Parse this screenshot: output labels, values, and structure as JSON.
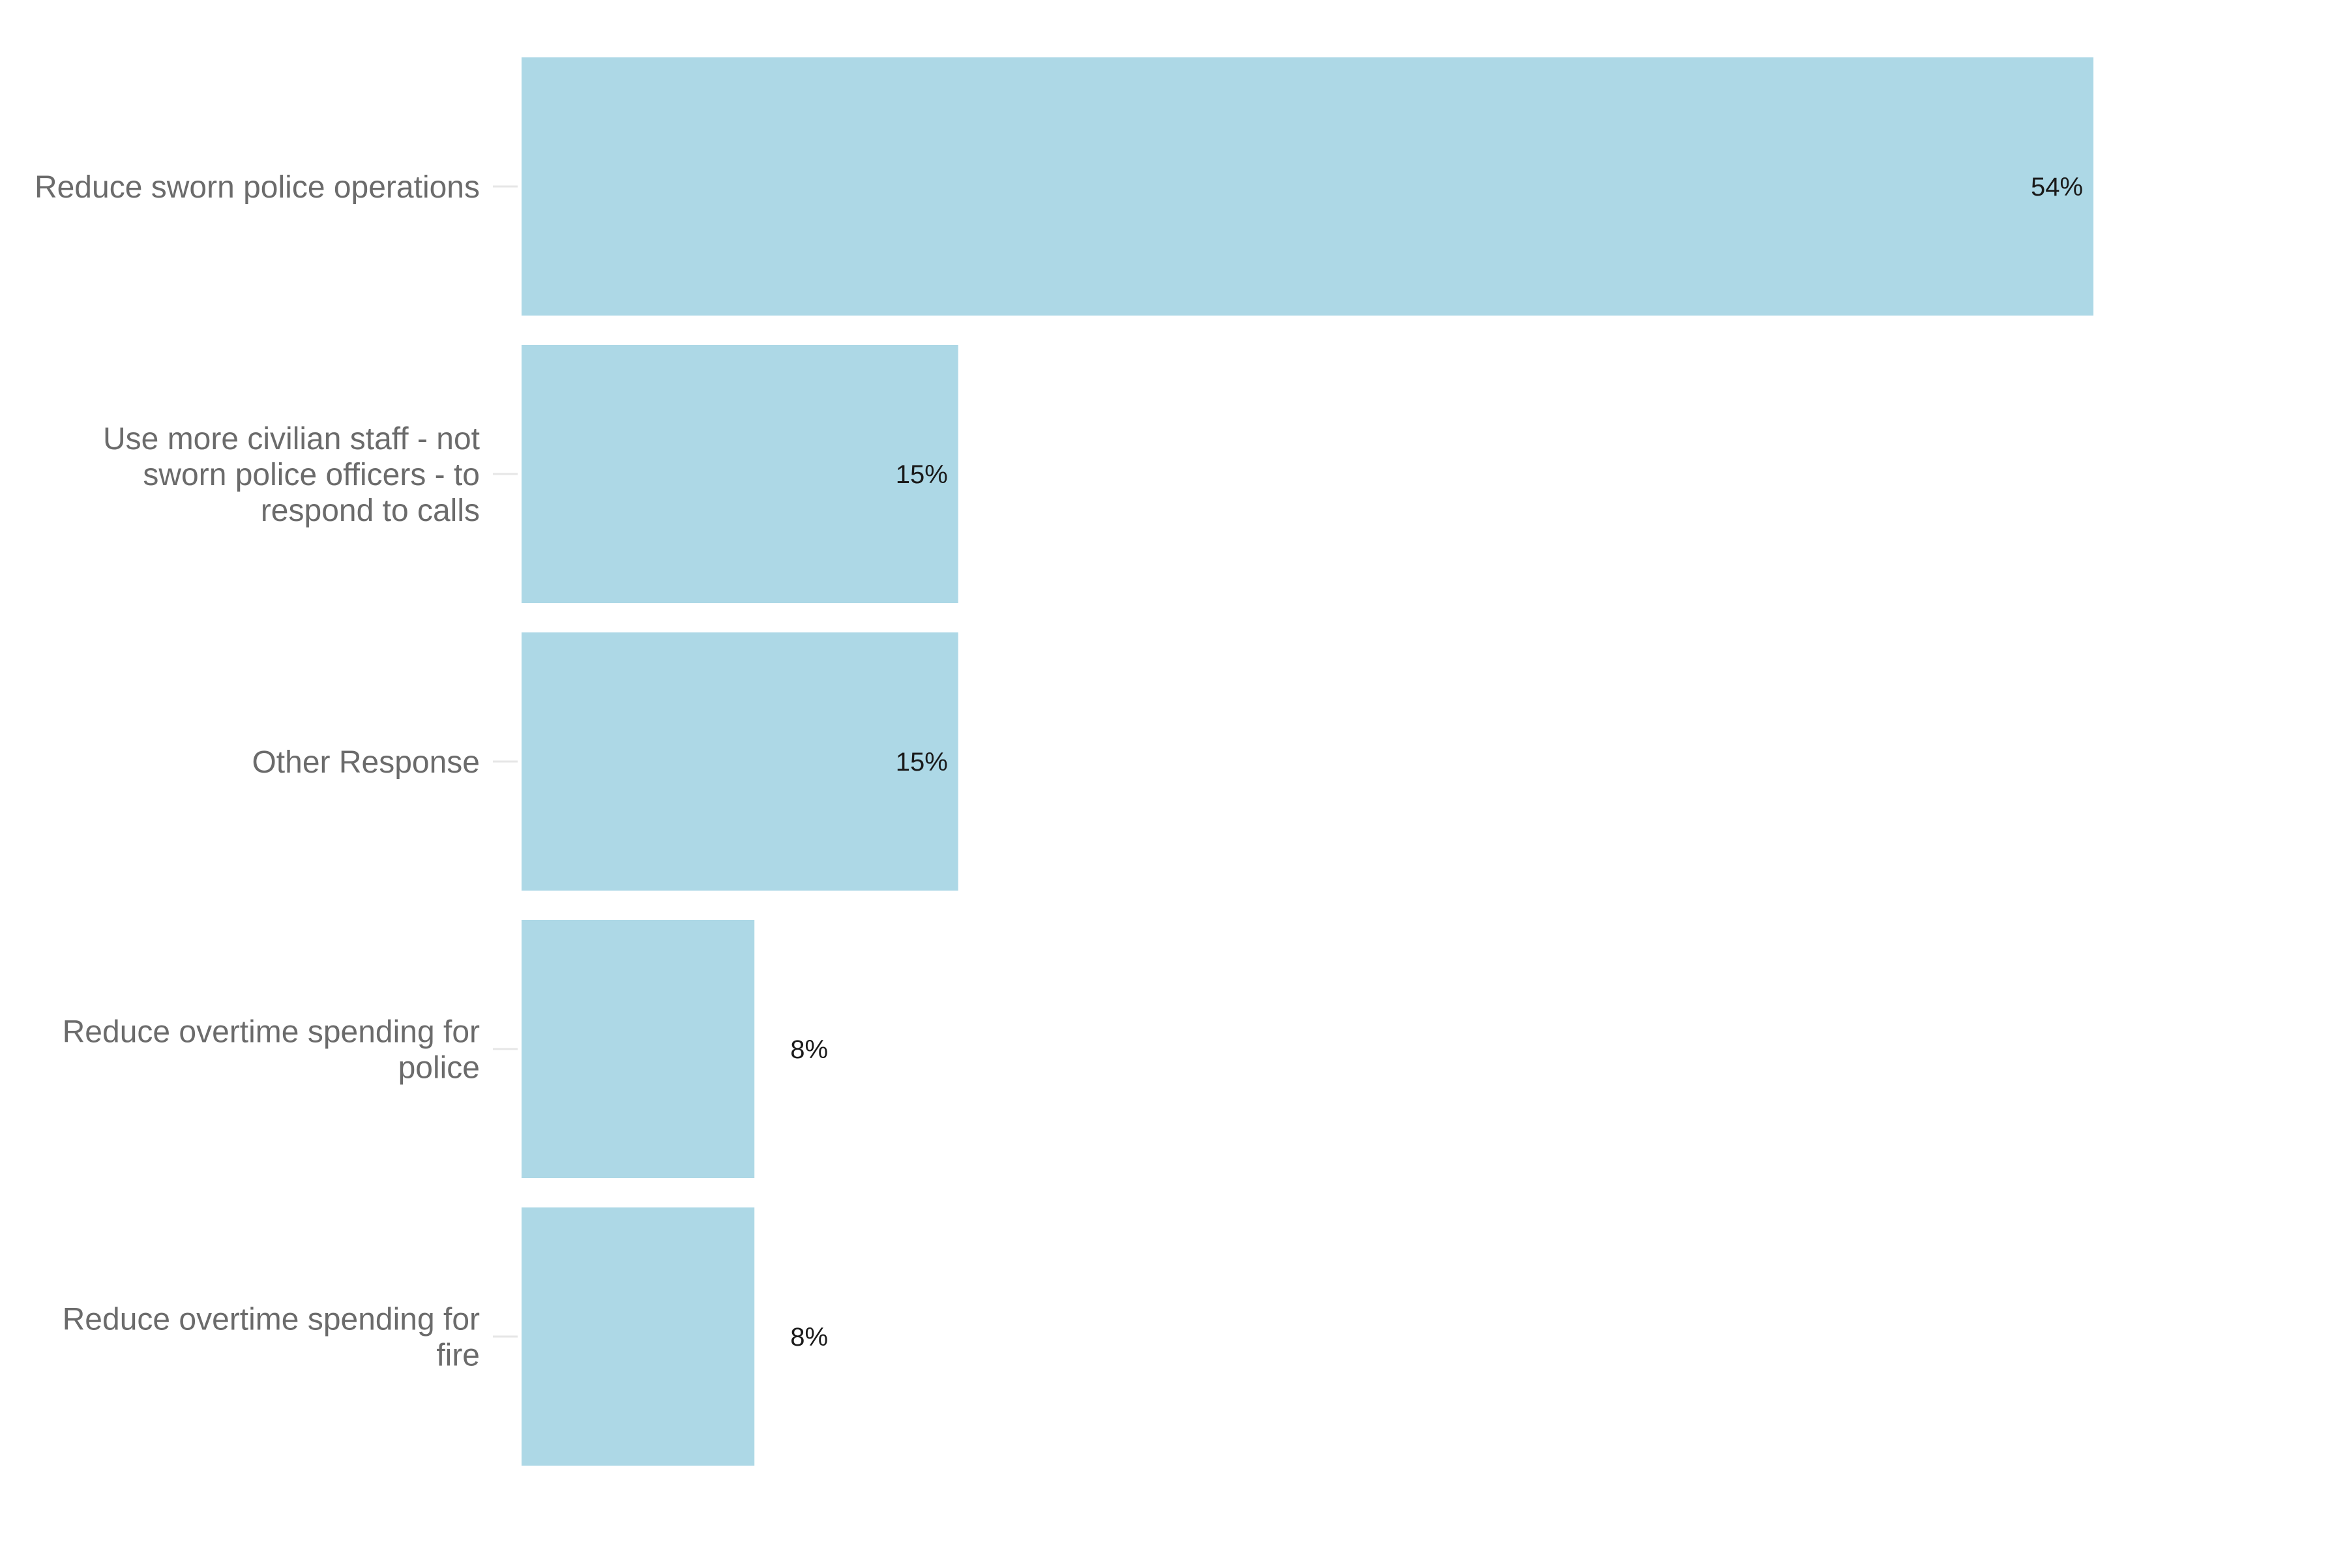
{
  "chart_data": {
    "type": "bar",
    "orientation": "horizontal",
    "categories": [
      "Reduce sworn police operations",
      "Use more civilian staff - not sworn police officers - to respond to calls",
      "Other Response",
      "Reduce overtime spending for police",
      "Reduce overtime spending for fire"
    ],
    "category_lines": [
      [
        "Reduce sworn police operations"
      ],
      [
        "Use more civilian staff - not",
        "sworn police officers - to",
        "respond to calls"
      ],
      [
        "Other Response"
      ],
      [
        "Reduce overtime spending for",
        "police"
      ],
      [
        "Reduce overtime spending for",
        "fire"
      ]
    ],
    "values": [
      54,
      15,
      15,
      8,
      8
    ],
    "value_labels": [
      "54%",
      "15%",
      "15%",
      "8%",
      "8%"
    ],
    "unit": "%",
    "title": "",
    "xlabel": "",
    "ylabel": "",
    "xlim": [
      0,
      57
    ],
    "grid": false,
    "legend": "none",
    "bar_color": "#add8e6",
    "tick_color": "#e6e6e6"
  }
}
